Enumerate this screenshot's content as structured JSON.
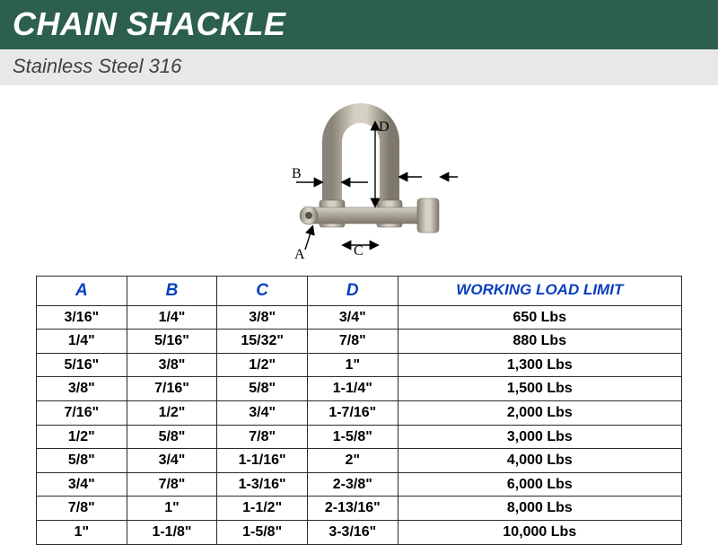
{
  "header": {
    "title": "CHAIN SHACKLE",
    "subtitle": "Stainless Steel 316",
    "header_bg": "#2d5f4e",
    "header_text_color": "#ffffff",
    "subband_bg": "#e8e8e8",
    "subband_rule_color": "#2d5f4e",
    "subtitle_color": "#404040"
  },
  "diagram": {
    "labels": {
      "A": "A",
      "B": "B",
      "C": "C",
      "D": "D"
    },
    "shackle_fill": "#b5b0a6",
    "shackle_edge": "#6a655c",
    "arrow_color": "#000000"
  },
  "table": {
    "header_color": "#0a3fbf",
    "border_color": "#2b2b2b",
    "columns": [
      "A",
      "B",
      "C",
      "D",
      "WORKING LOAD LIMIT"
    ],
    "rows": [
      [
        "3/16\"",
        "1/4\"",
        "3/8\"",
        "3/4\"",
        "650 Lbs"
      ],
      [
        "1/4\"",
        "5/16\"",
        "15/32\"",
        "7/8\"",
        "880 Lbs"
      ],
      [
        "5/16\"",
        "3/8\"",
        "1/2\"",
        "1\"",
        "1,300 Lbs"
      ],
      [
        "3/8\"",
        "7/16\"",
        "5/8\"",
        "1-1/4\"",
        "1,500 Lbs"
      ],
      [
        "7/16\"",
        "1/2\"",
        "3/4\"",
        "1-7/16\"",
        "2,000 Lbs"
      ],
      [
        "1/2\"",
        "5/8\"",
        "7/8\"",
        "1-5/8\"",
        "3,000 Lbs"
      ],
      [
        "5/8\"",
        "3/4\"",
        "1-1/16\"",
        "2\"",
        "4,000 Lbs"
      ],
      [
        "3/4\"",
        "7/8\"",
        "1-3/16\"",
        "2-3/8\"",
        "6,000 Lbs"
      ],
      [
        "7/8\"",
        "1\"",
        "1-1/2\"",
        "2-13/16\"",
        "8,000 Lbs"
      ],
      [
        "1\"",
        "1-1/8\"",
        "1-5/8\"",
        "3-3/16\"",
        "10,000 Lbs"
      ]
    ]
  }
}
